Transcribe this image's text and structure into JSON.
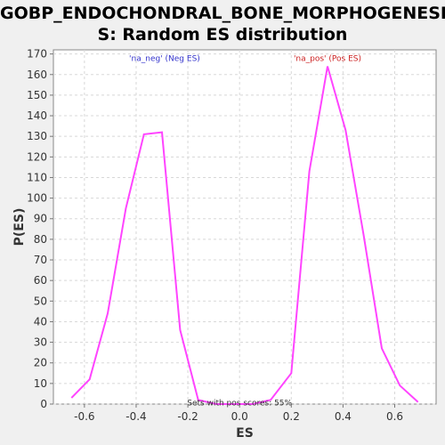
{
  "chart_data": {
    "type": "line",
    "title_line1": "GOBP_ENDOCHONDRAL_BONE_MORPHOGENESI",
    "title_line2": "S: Random ES distribution",
    "xlabel": "ES",
    "ylabel": "P(ES)",
    "xlim": [
      -0.72,
      0.76
    ],
    "ylim": [
      0,
      172
    ],
    "xticks": [
      -0.6,
      -0.4,
      -0.2,
      0.0,
      0.2,
      0.4,
      0.6
    ],
    "xtick_labels": [
      "-0.6",
      "-0.4",
      "-0.2",
      "0.0",
      "0.2",
      "0.4",
      "0.6"
    ],
    "yticks": [
      0,
      10,
      20,
      30,
      40,
      50,
      60,
      70,
      80,
      90,
      100,
      110,
      120,
      130,
      140,
      150,
      160,
      170
    ],
    "ytick_labels": [
      "0",
      "10",
      "20",
      "30",
      "40",
      "50",
      "60",
      "70",
      "80",
      "90",
      "100",
      "110",
      "120",
      "130",
      "140",
      "150",
      "160",
      "170"
    ],
    "grid": true,
    "line_color": "#ff44ff",
    "series": [
      {
        "x": [
          -0.65,
          -0.58,
          -0.51,
          -0.44,
          -0.37,
          -0.3,
          -0.23,
          -0.16,
          -0.09,
          -0.02,
          0.05,
          0.12,
          0.2,
          0.27,
          0.34,
          0.41,
          0.48,
          0.55,
          0.62,
          0.69
        ],
        "y": [
          3,
          12,
          44,
          95,
          131,
          132,
          36,
          2,
          0,
          0,
          0,
          2,
          15,
          113,
          164,
          133,
          82,
          27,
          9,
          1
        ]
      }
    ],
    "annotations": [
      {
        "text": "'na_neg' (Neg ES)",
        "x": -0.29,
        "y": 168,
        "color": "#3333cc"
      },
      {
        "text": "'na_pos' (Pos ES)",
        "x": 0.34,
        "y": 168,
        "color": "#cc2222"
      },
      {
        "text": "Sets with pos scores: 55%",
        "x": 0.0,
        "y": 0.6,
        "color": "#333333"
      }
    ]
  }
}
